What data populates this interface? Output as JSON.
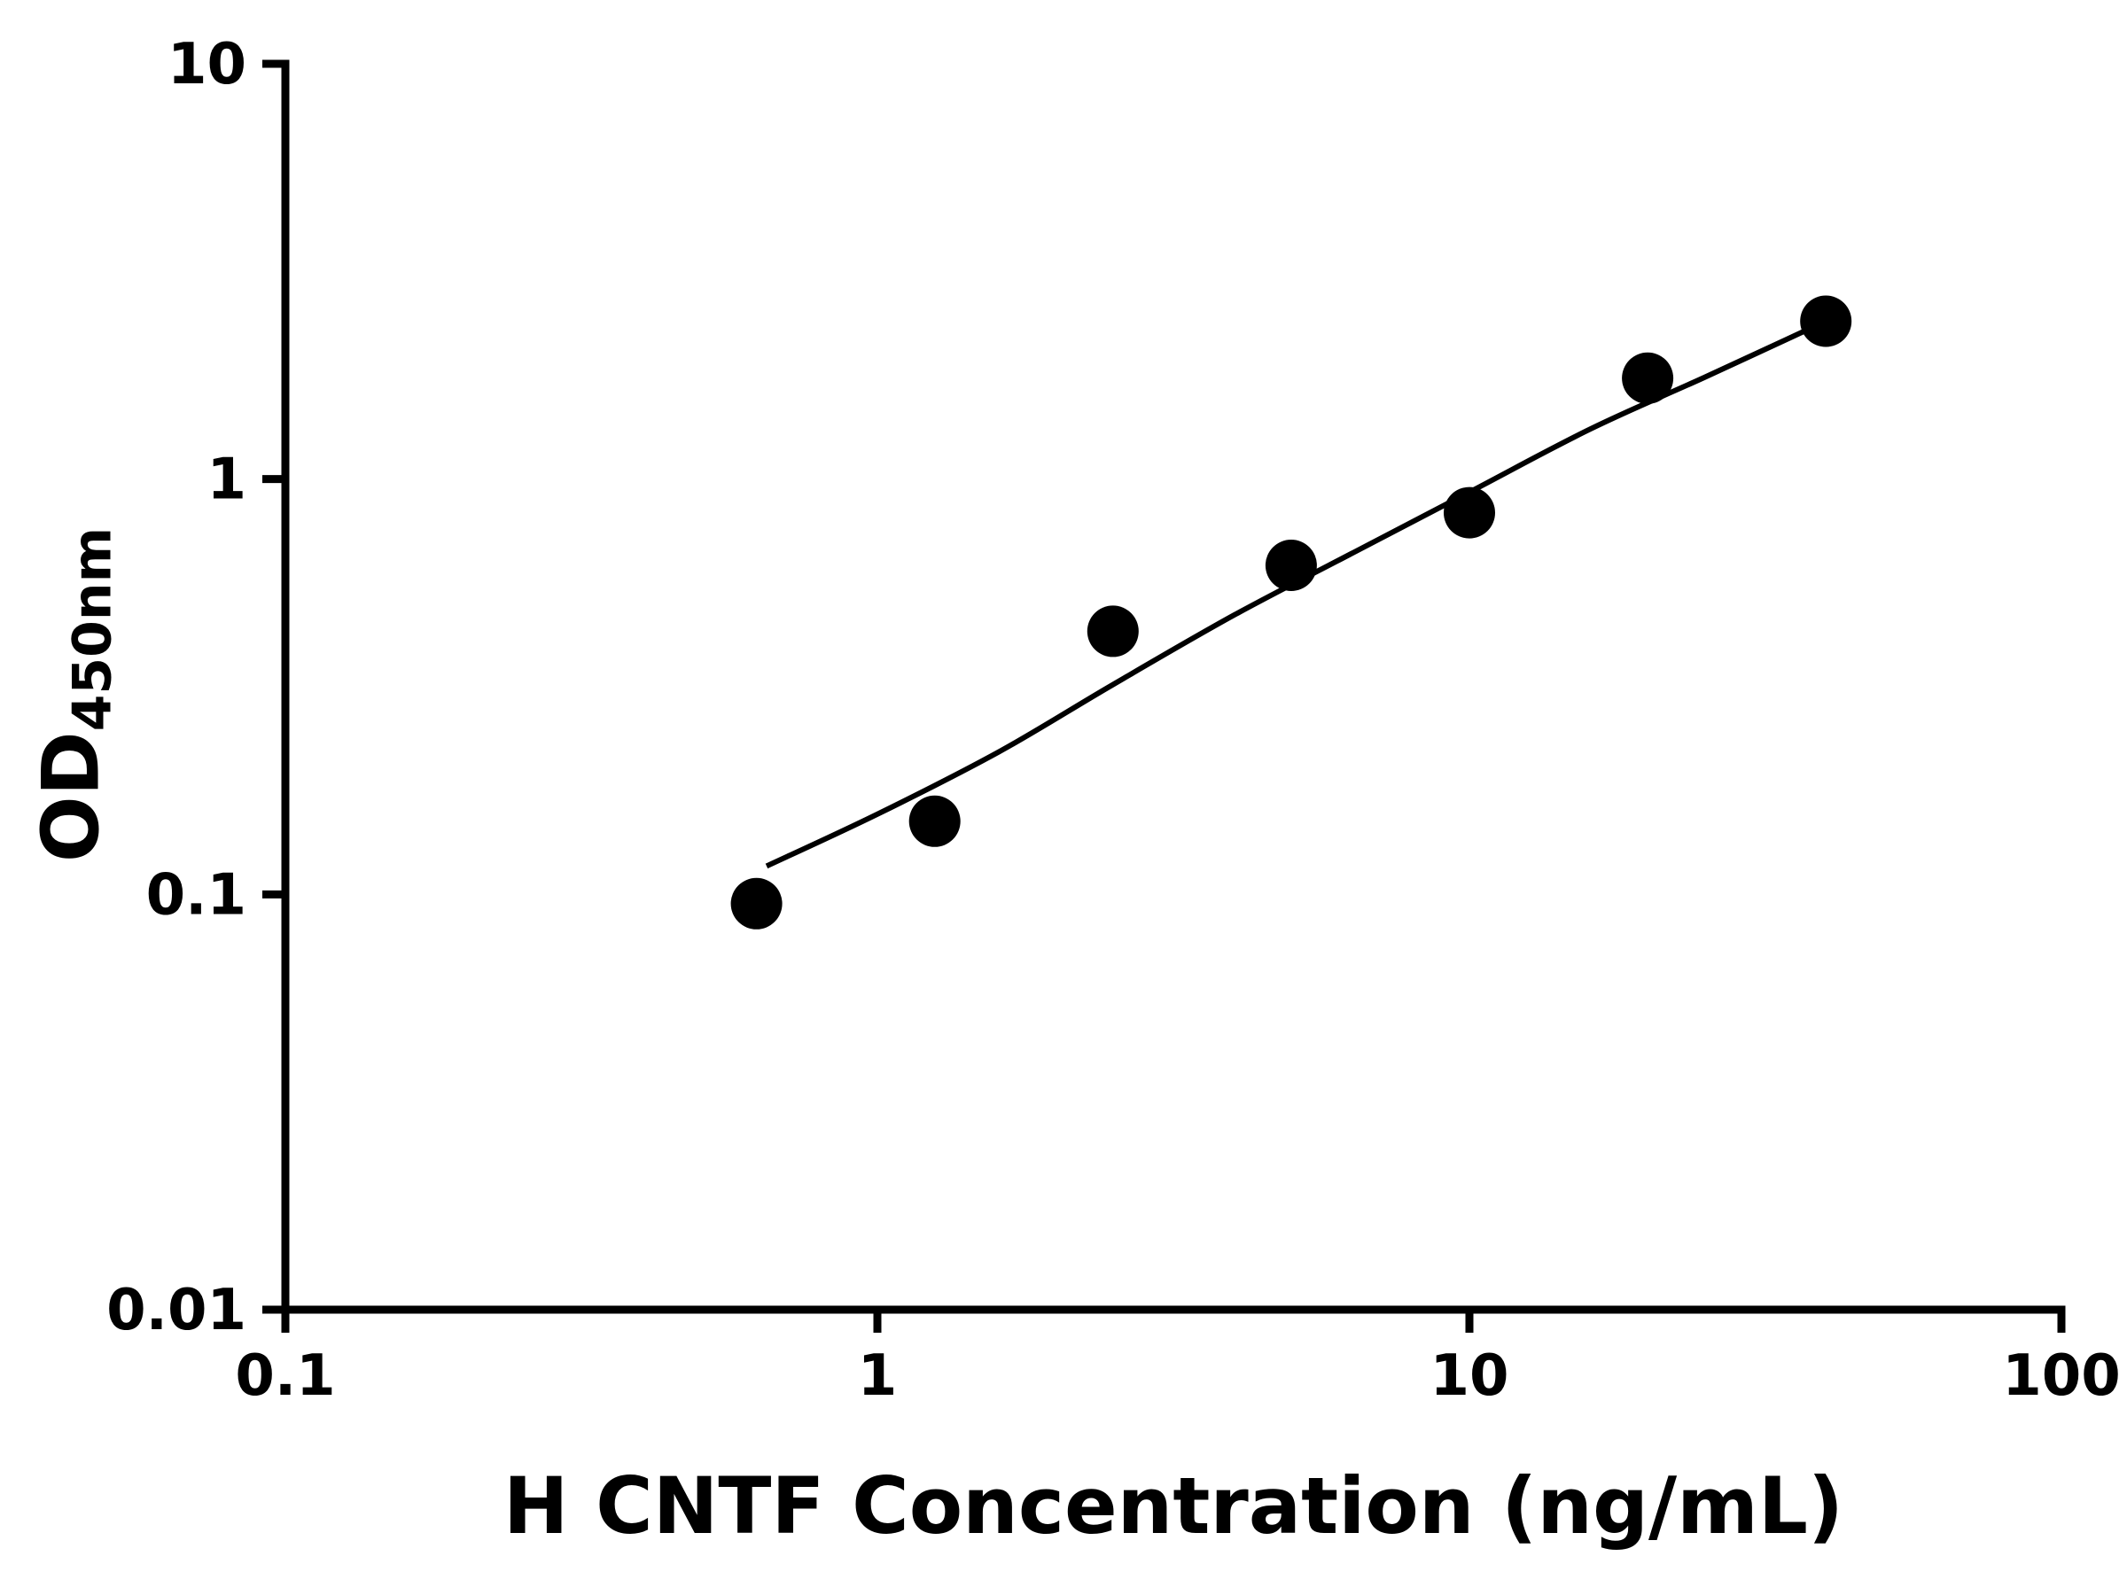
{
  "chart_data": {
    "type": "scatter",
    "xlabel": "H CNTF Concentration (ng/mL)",
    "ylabel": "OD450nm",
    "ylabel_parts": {
      "main": "OD",
      "sub": "450nm"
    },
    "xscale": "log",
    "yscale": "log",
    "xlim": [
      0.1,
      100
    ],
    "ylim": [
      0.01,
      10
    ],
    "x_tick_values": [
      0.1,
      1,
      10,
      100
    ],
    "x_tick_labels": [
      "0.1",
      "1",
      "10",
      "100"
    ],
    "y_tick_values": [
      0.01,
      0.1,
      1,
      10
    ],
    "y_tick_labels": [
      "0.01",
      "0.1",
      "1",
      "10"
    ],
    "grid": false,
    "legend": false,
    "marker": {
      "shape": "filled-circle",
      "color": "#000000",
      "radius_px": 29
    },
    "colors": {
      "axis": "#000000",
      "curve": "#000000",
      "marker": "#000000",
      "text": "#000000"
    },
    "series": [
      {
        "name": "data-points",
        "type": "scatter",
        "points": [
          {
            "x": 0.625,
            "y": 0.095
          },
          {
            "x": 1.25,
            "y": 0.15
          },
          {
            "x": 2.5,
            "y": 0.43
          },
          {
            "x": 5,
            "y": 0.62
          },
          {
            "x": 10,
            "y": 0.83
          },
          {
            "x": 20,
            "y": 1.75
          },
          {
            "x": 40,
            "y": 2.4
          }
        ]
      },
      {
        "name": "fit-curve",
        "type": "line",
        "points": [
          {
            "x": 0.65,
            "y": 0.117
          },
          {
            "x": 1.0,
            "y": 0.156
          },
          {
            "x": 1.6,
            "y": 0.22
          },
          {
            "x": 2.5,
            "y": 0.32
          },
          {
            "x": 4.0,
            "y": 0.47
          },
          {
            "x": 6.3,
            "y": 0.66
          },
          {
            "x": 10,
            "y": 0.93
          },
          {
            "x": 16,
            "y": 1.32
          },
          {
            "x": 25,
            "y": 1.76
          },
          {
            "x": 40,
            "y": 2.4
          }
        ]
      }
    ]
  }
}
